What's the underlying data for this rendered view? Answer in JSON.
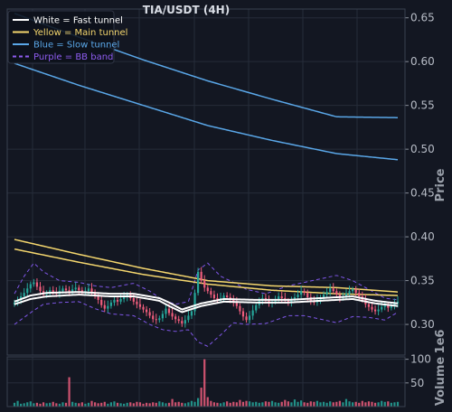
{
  "chart_data": {
    "type": "candlestick",
    "title": "TIA/USDT (4H)",
    "price_axis": {
      "label": "Price",
      "ylim": [
        0.265,
        0.66
      ],
      "ticks": [
        0.3,
        0.35,
        0.4,
        0.45,
        0.5,
        0.55,
        0.6,
        0.65
      ],
      "tick_labels": [
        "0.30",
        "0.35",
        "0.40",
        "0.45",
        "0.50",
        "0.55",
        "0.60",
        "0.65"
      ]
    },
    "volume_axis": {
      "label": "Volume",
      "exponent_label": "1e6",
      "ylim": [
        0,
        105
      ],
      "ticks": [
        50,
        100
      ],
      "tick_labels": [
        "50",
        "100"
      ]
    },
    "grid": true,
    "legend_position": "top-left",
    "legend": [
      {
        "label": "White = Fast tunnel",
        "color": "#ffffff",
        "style": "solid"
      },
      {
        "label": "Yellow = Main tunnel",
        "color": "#f5d76e",
        "style": "solid"
      },
      {
        "label": "Blue = Slow tunnel",
        "color": "#5aa7e8",
        "style": "solid"
      },
      {
        "label": "Purple = BB band",
        "color": "#8e5cf0",
        "style": "dashed"
      }
    ],
    "colors": {
      "up": "#26a69a",
      "down": "#ef5d7c",
      "background": "#131722",
      "grid": "#262c3a"
    },
    "n_bars": 120,
    "closes": [
      0.325,
      0.328,
      0.332,
      0.336,
      0.341,
      0.346,
      0.348,
      0.343,
      0.338,
      0.334,
      0.336,
      0.339,
      0.337,
      0.335,
      0.338,
      0.341,
      0.339,
      0.337,
      0.34,
      0.342,
      0.339,
      0.337,
      0.338,
      0.341,
      0.337,
      0.333,
      0.328,
      0.322,
      0.318,
      0.321,
      0.325,
      0.328,
      0.326,
      0.329,
      0.331,
      0.334,
      0.33,
      0.326,
      0.323,
      0.32,
      0.317,
      0.314,
      0.31,
      0.306,
      0.305,
      0.307,
      0.312,
      0.318,
      0.313,
      0.309,
      0.306,
      0.304,
      0.301,
      0.305,
      0.31,
      0.315,
      0.336,
      0.36,
      0.35,
      0.342,
      0.338,
      0.334,
      0.33,
      0.328,
      0.33,
      0.333,
      0.331,
      0.328,
      0.325,
      0.321,
      0.315,
      0.309,
      0.305,
      0.31,
      0.316,
      0.322,
      0.327,
      0.33,
      0.327,
      0.324,
      0.326,
      0.329,
      0.332,
      0.33,
      0.327,
      0.325,
      0.328,
      0.331,
      0.334,
      0.338,
      0.336,
      0.331,
      0.327,
      0.325,
      0.328,
      0.331,
      0.334,
      0.337,
      0.341,
      0.338,
      0.334,
      0.33,
      0.332,
      0.335,
      0.338,
      0.34,
      0.336,
      0.332,
      0.328,
      0.323,
      0.32,
      0.317,
      0.315,
      0.317,
      0.32,
      0.322,
      0.319,
      0.321,
      0.324,
      0.326
    ],
    "volume": [
      8,
      12,
      6,
      7,
      9,
      11,
      7,
      8,
      6,
      9,
      7,
      8,
      10,
      7,
      6,
      9,
      8,
      62,
      10,
      8,
      7,
      9,
      6,
      8,
      12,
      9,
      7,
      8,
      10,
      6,
      9,
      11,
      8,
      7,
      6,
      8,
      9,
      7,
      10,
      9,
      6,
      8,
      7,
      9,
      8,
      11,
      9,
      7,
      8,
      16,
      9,
      10,
      8,
      7,
      9,
      12,
      10,
      18,
      40,
      100,
      20,
      12,
      9,
      8,
      7,
      9,
      11,
      8,
      10,
      9,
      14,
      10,
      12,
      11,
      9,
      10,
      8,
      9,
      11,
      10,
      12,
      9,
      8,
      10,
      14,
      11,
      9,
      15,
      10,
      13,
      9,
      8,
      11,
      10,
      12,
      9,
      10,
      8,
      11,
      9,
      10,
      12,
      9,
      16,
      11,
      9,
      10,
      8,
      12,
      9,
      11,
      10,
      8,
      9,
      12,
      10,
      11,
      8,
      9,
      10
    ],
    "fast_tunnel": {
      "x": [
        0,
        5,
        10,
        20,
        30,
        37,
        45,
        48,
        52,
        58,
        65,
        75,
        85,
        95,
        105,
        112,
        119
      ],
      "upper": [
        0.326,
        0.333,
        0.336,
        0.337,
        0.335,
        0.335,
        0.33,
        0.325,
        0.317,
        0.324,
        0.329,
        0.328,
        0.328,
        0.33,
        0.332,
        0.327,
        0.324
      ],
      "lower": [
        0.323,
        0.329,
        0.332,
        0.334,
        0.332,
        0.332,
        0.327,
        0.321,
        0.314,
        0.321,
        0.326,
        0.325,
        0.325,
        0.327,
        0.329,
        0.324,
        0.321
      ]
    },
    "main_tunnel": {
      "x": [
        0,
        20,
        40,
        60,
        80,
        100,
        119
      ],
      "upper": [
        0.397,
        0.38,
        0.364,
        0.35,
        0.344,
        0.342,
        0.337
      ],
      "lower": [
        0.386,
        0.371,
        0.357,
        0.346,
        0.339,
        0.335,
        0.333
      ]
    },
    "slow_tunnel": {
      "x": [
        0,
        20,
        40,
        60,
        80,
        100,
        119
      ],
      "upper": [
        0.655,
        0.628,
        0.602,
        0.578,
        0.557,
        0.537,
        0.536
      ],
      "lower": [
        0.598,
        0.573,
        0.55,
        0.527,
        0.51,
        0.495,
        0.488
      ]
    },
    "bb_band": {
      "x": [
        0,
        3,
        6,
        9,
        14,
        20,
        25,
        30,
        37,
        42,
        46,
        50,
        54,
        57,
        60,
        64,
        68,
        72,
        78,
        85,
        90,
        95,
        100,
        105,
        110,
        115,
        119
      ],
      "upper": [
        0.335,
        0.355,
        0.37,
        0.36,
        0.35,
        0.348,
        0.344,
        0.342,
        0.347,
        0.338,
        0.328,
        0.323,
        0.326,
        0.362,
        0.37,
        0.355,
        0.348,
        0.34,
        0.335,
        0.344,
        0.348,
        0.352,
        0.356,
        0.35,
        0.34,
        0.33,
        0.328
      ],
      "lower": [
        0.3,
        0.308,
        0.316,
        0.323,
        0.325,
        0.326,
        0.318,
        0.312,
        0.31,
        0.3,
        0.294,
        0.292,
        0.294,
        0.28,
        0.275,
        0.288,
        0.302,
        0.3,
        0.301,
        0.31,
        0.31,
        0.306,
        0.302,
        0.309,
        0.308,
        0.305,
        0.314
      ]
    }
  }
}
